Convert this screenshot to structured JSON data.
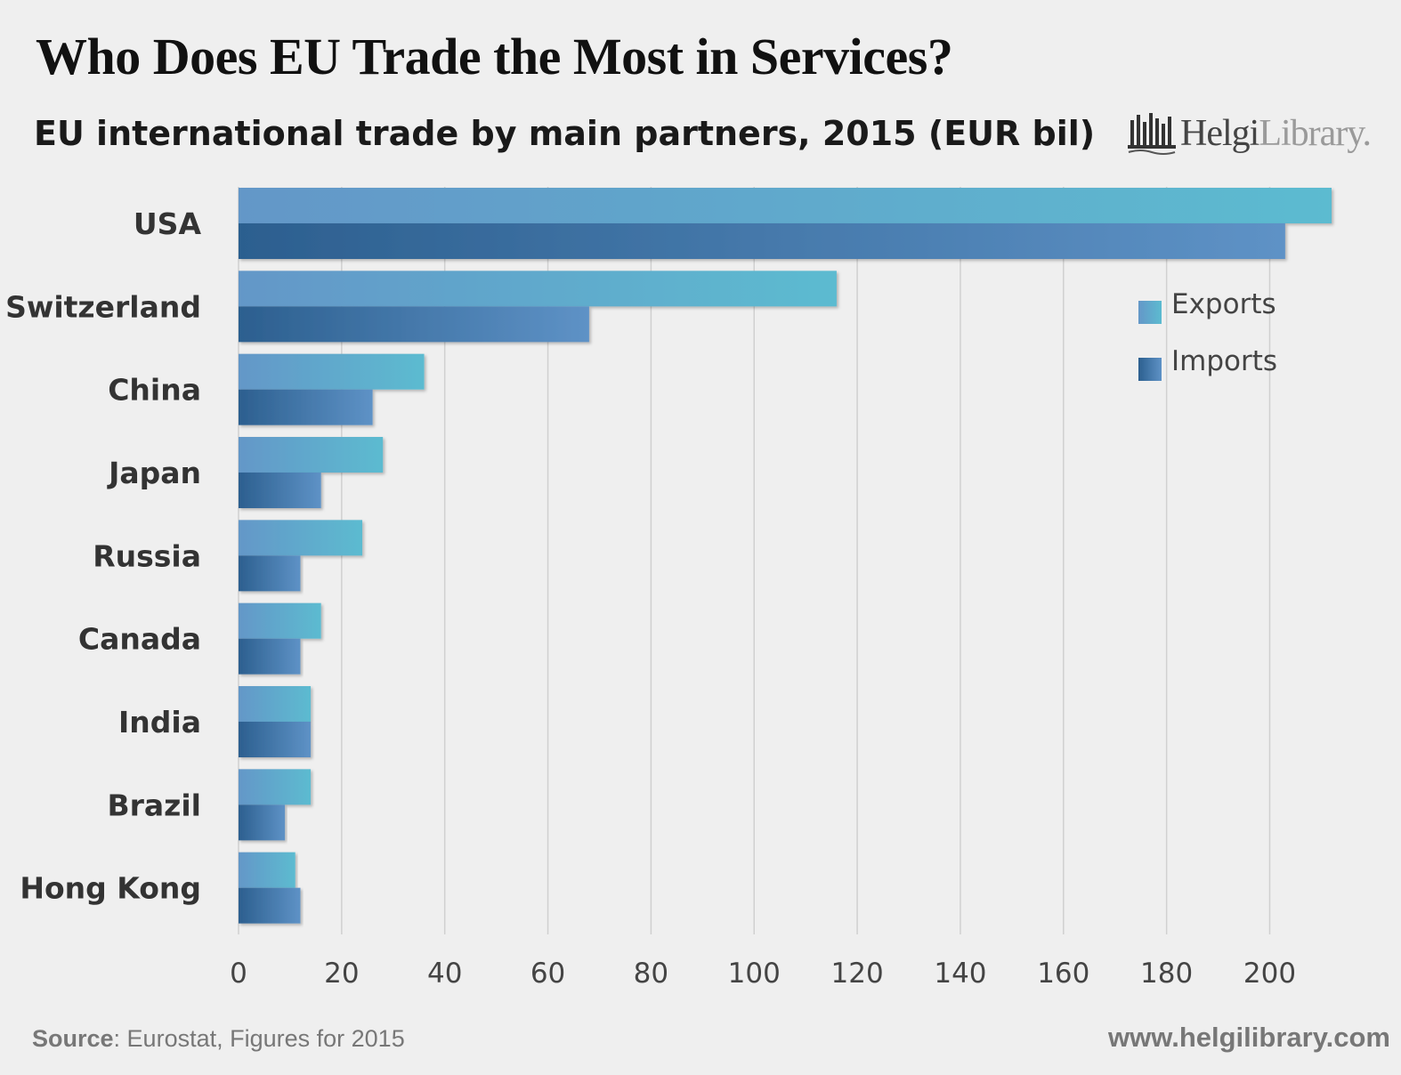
{
  "header": {
    "title": "Who Does EU Trade the Most in Services?",
    "subtitle": "EU international trade by main partners, 2015 (EUR bil)"
  },
  "logo": {
    "name_part1": "Helgi",
    "name_part2": "Library."
  },
  "footer": {
    "source_label": "Source",
    "source_text": ": Eurostat, Figures for 2015",
    "website": "www.helgilibrary.com"
  },
  "colors": {
    "exports_start": "#6497c8",
    "exports_end": "#5cbbd0",
    "imports_start": "#2c5f8f",
    "imports_end": "#5e92c6",
    "gridline": "#d0d0d0",
    "axis_text": "#444444",
    "category_text": "#333333"
  },
  "chart_data": {
    "type": "bar",
    "orientation": "horizontal",
    "title": "Who Does EU Trade the Most in Services?",
    "subtitle": "EU international trade by main partners, 2015 (EUR bil)",
    "categories": [
      "USA",
      "Switzerland",
      "China",
      "Japan",
      "Russia",
      "Canada",
      "India",
      "Brazil",
      "Hong Kong"
    ],
    "series": [
      {
        "name": "Exports",
        "values": [
          212,
          116,
          36,
          28,
          24,
          16,
          14,
          14,
          11
        ]
      },
      {
        "name": "Imports",
        "values": [
          203,
          68,
          26,
          16,
          12,
          12,
          14,
          9,
          12
        ]
      }
    ],
    "xlim": [
      0,
      212
    ],
    "xticks": [
      0,
      20,
      40,
      60,
      80,
      100,
      120,
      140,
      160,
      180,
      200
    ],
    "grid": true,
    "legend": {
      "position": "right",
      "entries": [
        "Exports",
        "Imports"
      ]
    }
  }
}
